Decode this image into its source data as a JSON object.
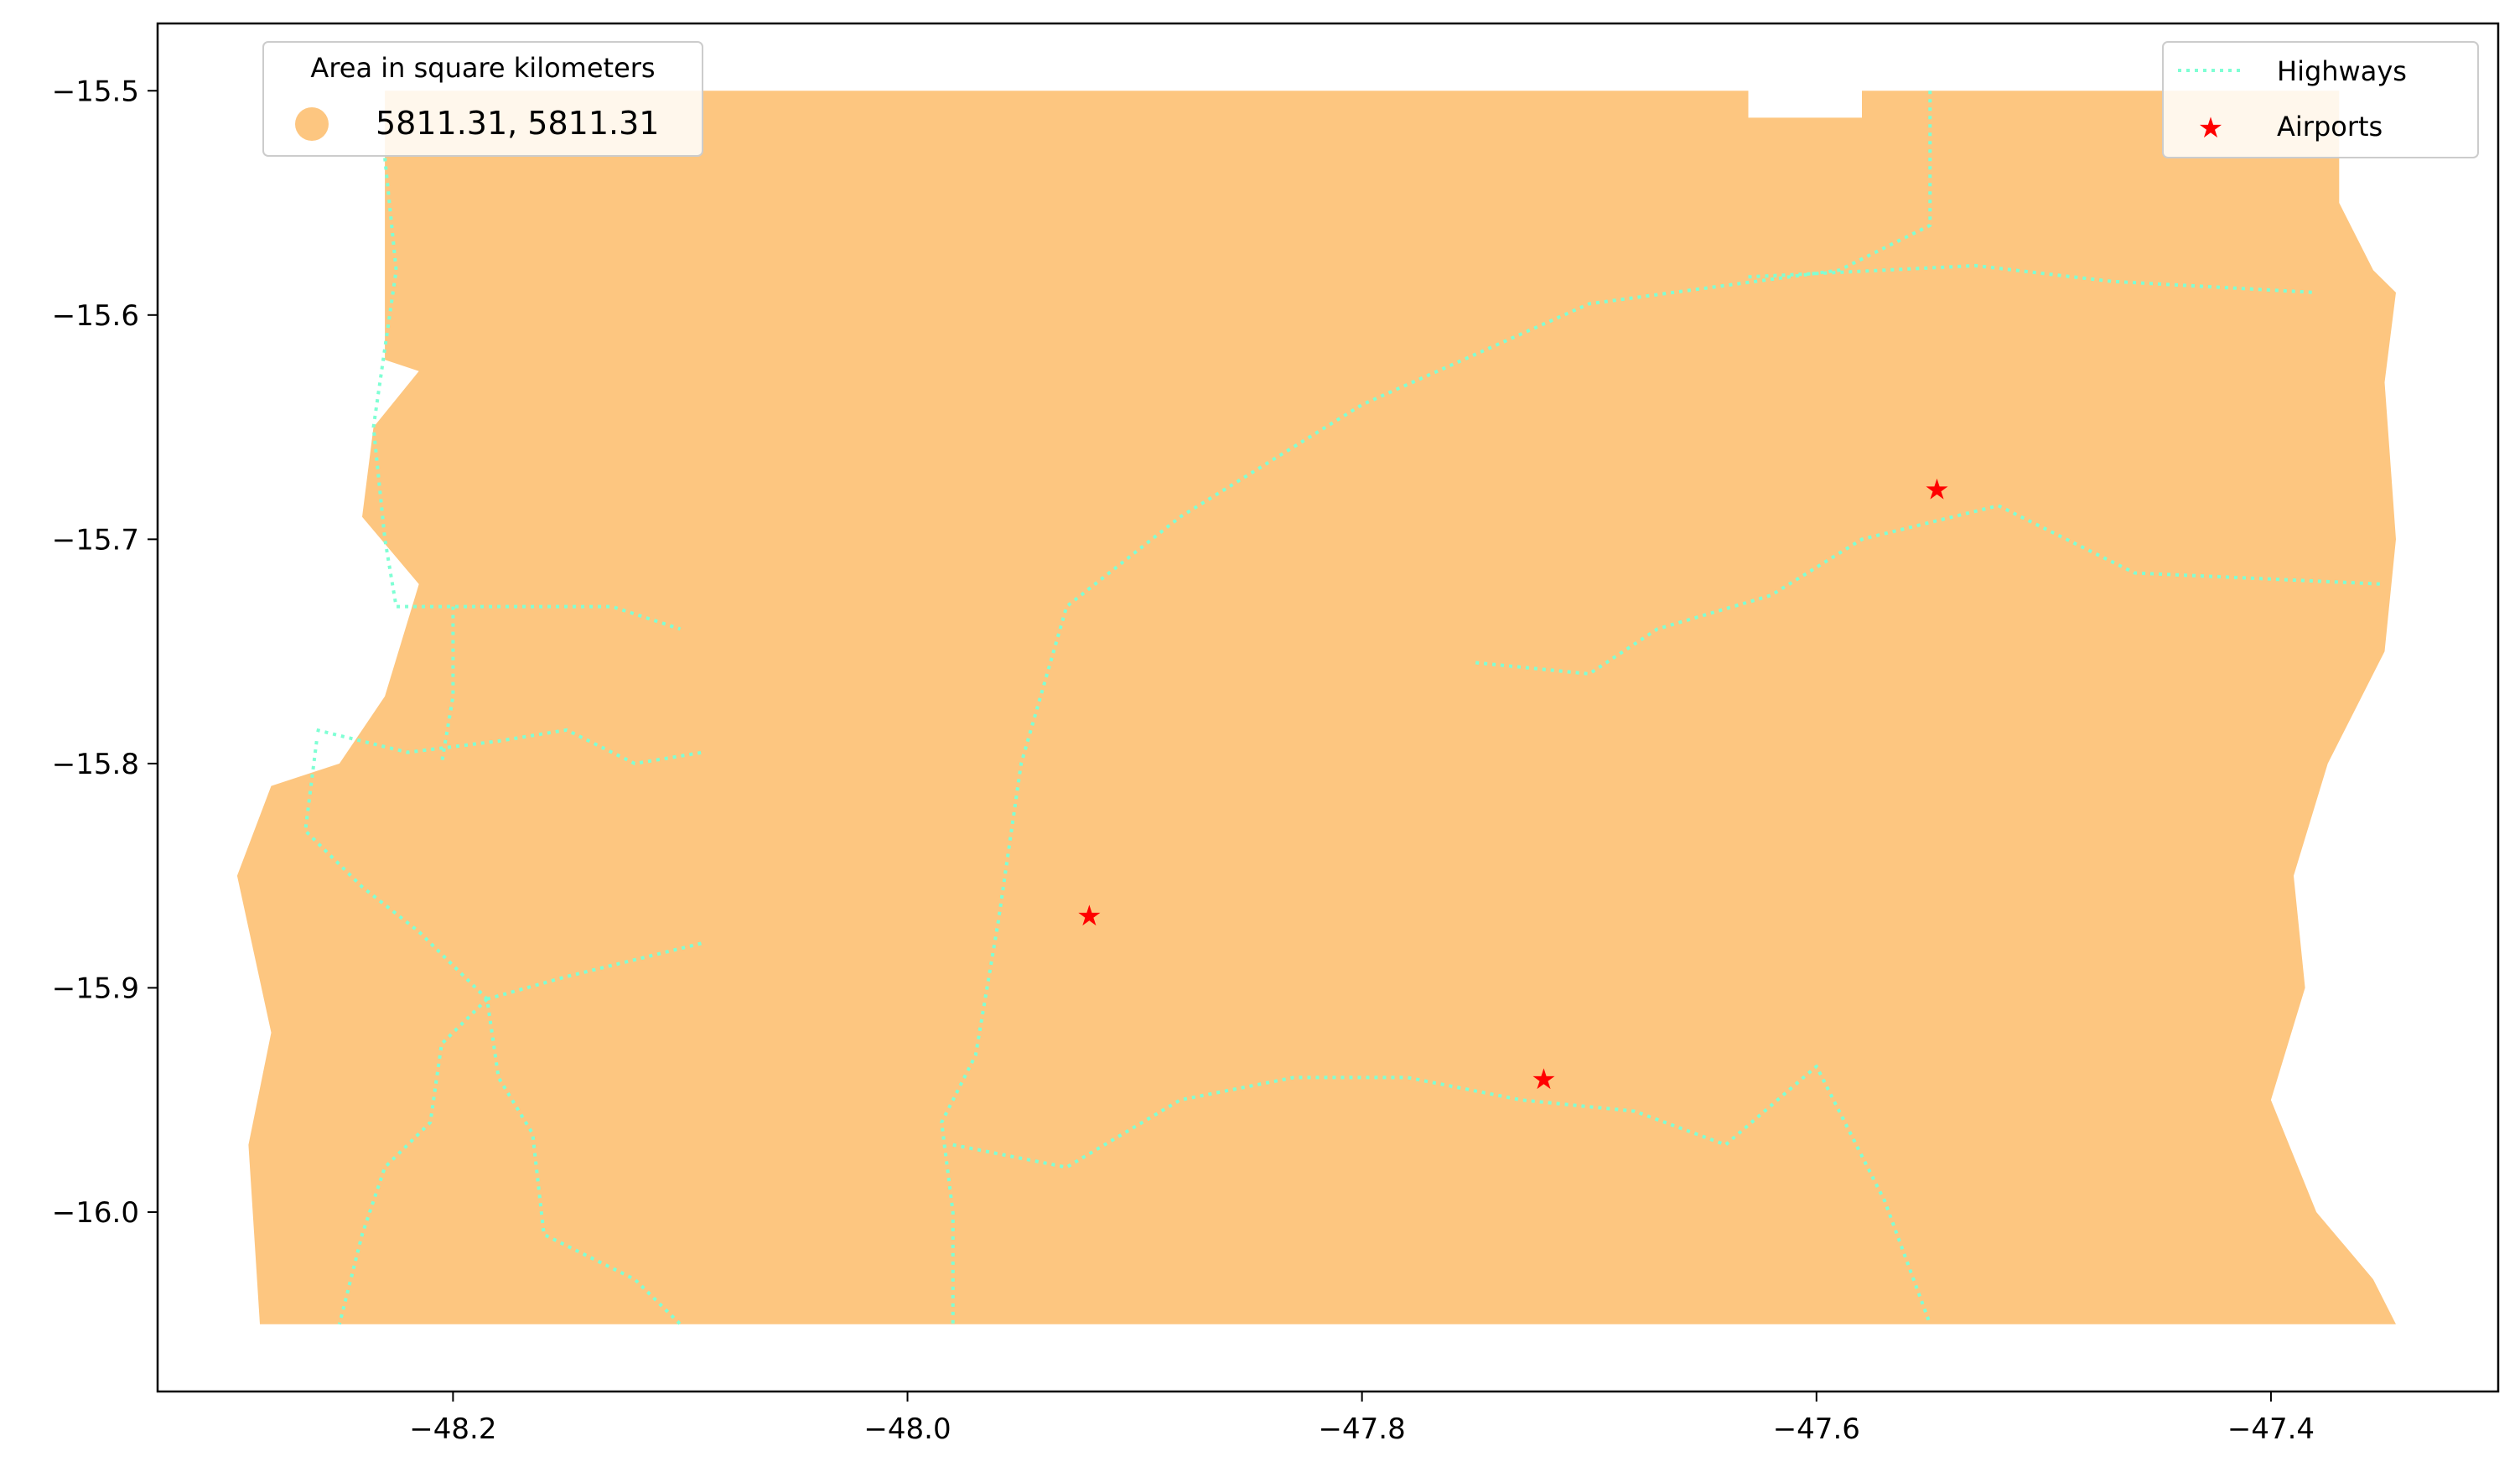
{
  "chart_data": {
    "type": "map",
    "xlim": [
      -48.33,
      -47.3
    ],
    "ylim": [
      -16.08,
      -15.47
    ],
    "x_ticks": [
      -48.2,
      -48.0,
      -47.8,
      -47.6,
      -47.4
    ],
    "y_ticks": [
      -15.5,
      -15.6,
      -15.7,
      -15.8,
      -15.9,
      -16.0
    ],
    "x_tick_labels": [
      "−48.2",
      "−48.0",
      "−47.8",
      "−47.6",
      "−47.4"
    ],
    "y_tick_labels": [
      "−15.5",
      "−15.6",
      "−15.7",
      "−15.8",
      "−15.9",
      "−16.0"
    ],
    "grid": false,
    "region": {
      "color": "#fdc680",
      "outline": [
        [
          -48.23,
          -15.5
        ],
        [
          -47.63,
          -15.5
        ],
        [
          -47.63,
          -15.512
        ],
        [
          -47.58,
          -15.512
        ],
        [
          -47.58,
          -15.5
        ],
        [
          -47.37,
          -15.5
        ],
        [
          -47.37,
          -15.55
        ],
        [
          -47.355,
          -15.58
        ],
        [
          -47.345,
          -15.59
        ],
        [
          -47.35,
          -15.63
        ],
        [
          -47.345,
          -15.7
        ],
        [
          -47.35,
          -15.75
        ],
        [
          -47.375,
          -15.8
        ],
        [
          -47.39,
          -15.85
        ],
        [
          -47.385,
          -15.9
        ],
        [
          -47.4,
          -15.95
        ],
        [
          -47.38,
          -16.0
        ],
        [
          -47.355,
          -16.03
        ],
        [
          -47.345,
          -16.05
        ],
        [
          -48.285,
          -16.05
        ],
        [
          -48.29,
          -15.97
        ],
        [
          -48.28,
          -15.92
        ],
        [
          -48.295,
          -15.85
        ],
        [
          -48.28,
          -15.81
        ],
        [
          -48.25,
          -15.8
        ],
        [
          -48.23,
          -15.77
        ],
        [
          -48.215,
          -15.72
        ],
        [
          -48.24,
          -15.69
        ],
        [
          -48.235,
          -15.65
        ],
        [
          -48.215,
          -15.625
        ],
        [
          -48.23,
          -15.62
        ]
      ]
    },
    "highways": {
      "color": "#7fffd4",
      "paths": [
        [
          [
            -48.23,
            -15.53
          ],
          [
            -48.225,
            -15.58
          ],
          [
            -48.235,
            -15.65
          ],
          [
            -48.23,
            -15.7
          ],
          [
            -48.225,
            -15.73
          ],
          [
            -48.13,
            -15.73
          ],
          [
            -48.1,
            -15.74
          ]
        ],
        [
          [
            -48.2,
            -15.73
          ],
          [
            -48.2,
            -15.77
          ],
          [
            -48.205,
            -15.8
          ]
        ],
        [
          [
            -48.26,
            -15.785
          ],
          [
            -48.22,
            -15.795
          ],
          [
            -48.18,
            -15.79
          ],
          [
            -48.15,
            -15.785
          ],
          [
            -48.12,
            -15.8
          ],
          [
            -48.09,
            -15.795
          ]
        ],
        [
          [
            -48.26,
            -15.79
          ],
          [
            -48.265,
            -15.83
          ],
          [
            -48.24,
            -15.855
          ],
          [
            -48.215,
            -15.875
          ],
          [
            -48.185,
            -15.905
          ],
          [
            -48.18,
            -15.94
          ],
          [
            -48.165,
            -15.965
          ],
          [
            -48.16,
            -16.01
          ],
          [
            -48.12,
            -16.03
          ],
          [
            -48.1,
            -16.05
          ]
        ],
        [
          [
            -48.185,
            -15.905
          ],
          [
            -48.15,
            -15.895
          ],
          [
            -48.09,
            -15.88
          ]
        ],
        [
          [
            -48.185,
            -15.905
          ],
          [
            -48.205,
            -15.925
          ],
          [
            -48.21,
            -15.96
          ],
          [
            -48.23,
            -15.98
          ],
          [
            -48.24,
            -16.01
          ],
          [
            -48.25,
            -16.05
          ]
        ],
        [
          [
            -47.55,
            -15.5
          ],
          [
            -47.55,
            -15.56
          ],
          [
            -47.59,
            -15.58
          ],
          [
            -47.7,
            -15.595
          ],
          [
            -47.8,
            -15.64
          ],
          [
            -47.88,
            -15.69
          ],
          [
            -47.93,
            -15.73
          ],
          [
            -47.95,
            -15.8
          ],
          [
            -47.96,
            -15.87
          ],
          [
            -47.97,
            -15.93
          ],
          [
            -47.985,
            -15.96
          ],
          [
            -47.98,
            -16.0
          ],
          [
            -47.98,
            -16.05
          ]
        ],
        [
          [
            -47.63,
            -15.583
          ],
          [
            -47.53,
            -15.578
          ],
          [
            -47.47,
            -15.585
          ],
          [
            -47.38,
            -15.59
          ]
        ],
        [
          [
            -47.98,
            -15.97
          ],
          [
            -47.93,
            -15.98
          ],
          [
            -47.88,
            -15.95
          ],
          [
            -47.83,
            -15.94
          ],
          [
            -47.78,
            -15.94
          ],
          [
            -47.73,
            -15.95
          ],
          [
            -47.68,
            -15.955
          ],
          [
            -47.64,
            -15.97
          ],
          [
            -47.6,
            -15.935
          ],
          [
            -47.57,
            -15.995
          ],
          [
            -47.55,
            -16.05
          ]
        ],
        [
          [
            -47.75,
            -15.755
          ],
          [
            -47.7,
            -15.76
          ],
          [
            -47.67,
            -15.74
          ],
          [
            -47.62,
            -15.725
          ],
          [
            -47.58,
            -15.7
          ],
          [
            -47.52,
            -15.685
          ],
          [
            -47.46,
            -15.715
          ],
          [
            -47.35,
            -15.72
          ]
        ]
      ]
    },
    "airports": {
      "color": "#ff0000",
      "points": [
        {
          "lon": -47.547,
          "lat": -15.678
        },
        {
          "lon": -47.92,
          "lat": -15.868
        },
        {
          "lon": -47.72,
          "lat": -15.941
        }
      ]
    },
    "legends": {
      "area": {
        "title": "Area in square kilometers",
        "entry": "5811.31, 5811.31",
        "placement": "upper-left"
      },
      "layers": {
        "placement": "upper-right",
        "entries": [
          "Highways",
          "Airports"
        ]
      }
    }
  }
}
